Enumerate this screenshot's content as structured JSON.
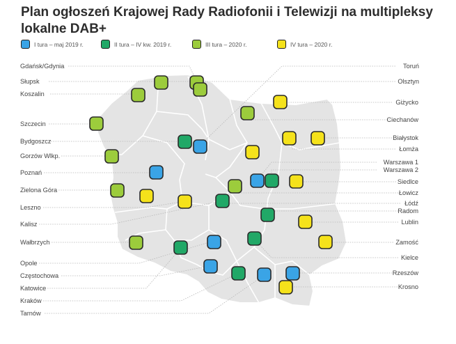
{
  "title": "Plan ogłoszeń Krajowej Rady Radiofonii i Telewizji na multipleksy lokalne DAB+",
  "legend": [
    {
      "label": "I tura – maj 2019 r.",
      "color": "#3aa4e6"
    },
    {
      "label": "II tura – IV kw. 2019 r.",
      "color": "#21a867"
    },
    {
      "label": "III tura – 2020 r.",
      "color": "#9ccc3c"
    },
    {
      "label": "IV tura – 2020 r.",
      "color": "#f5e21b"
    }
  ],
  "cities_left": [
    "Gdańsk/Gdynia",
    "Słupsk",
    "Koszalin",
    "Szczecin",
    "Bydgoszcz",
    "Gorzów Wlkp.",
    "Poznań",
    "Zielona Góra",
    "Leszno",
    "Kalisz",
    "Wałbrzych",
    "Opole",
    "Częstochowa",
    "Katowice",
    "Kraków",
    "Tarnów"
  ],
  "cities_right": [
    "Toruń",
    "Olsztyn",
    "Giżycko",
    "Ciechanów",
    "Białystok",
    "Łomża",
    "Warszawa 1",
    "Warszawa 2",
    "Siedlce",
    "Łowicz",
    "Łódź",
    "Radom",
    "Lublin",
    "Zamość",
    "Kielce",
    "Rzeszów",
    "Krosno"
  ],
  "markers": {
    "blue": 6,
    "green": 8,
    "lime": 9,
    "yellow": 12
  }
}
